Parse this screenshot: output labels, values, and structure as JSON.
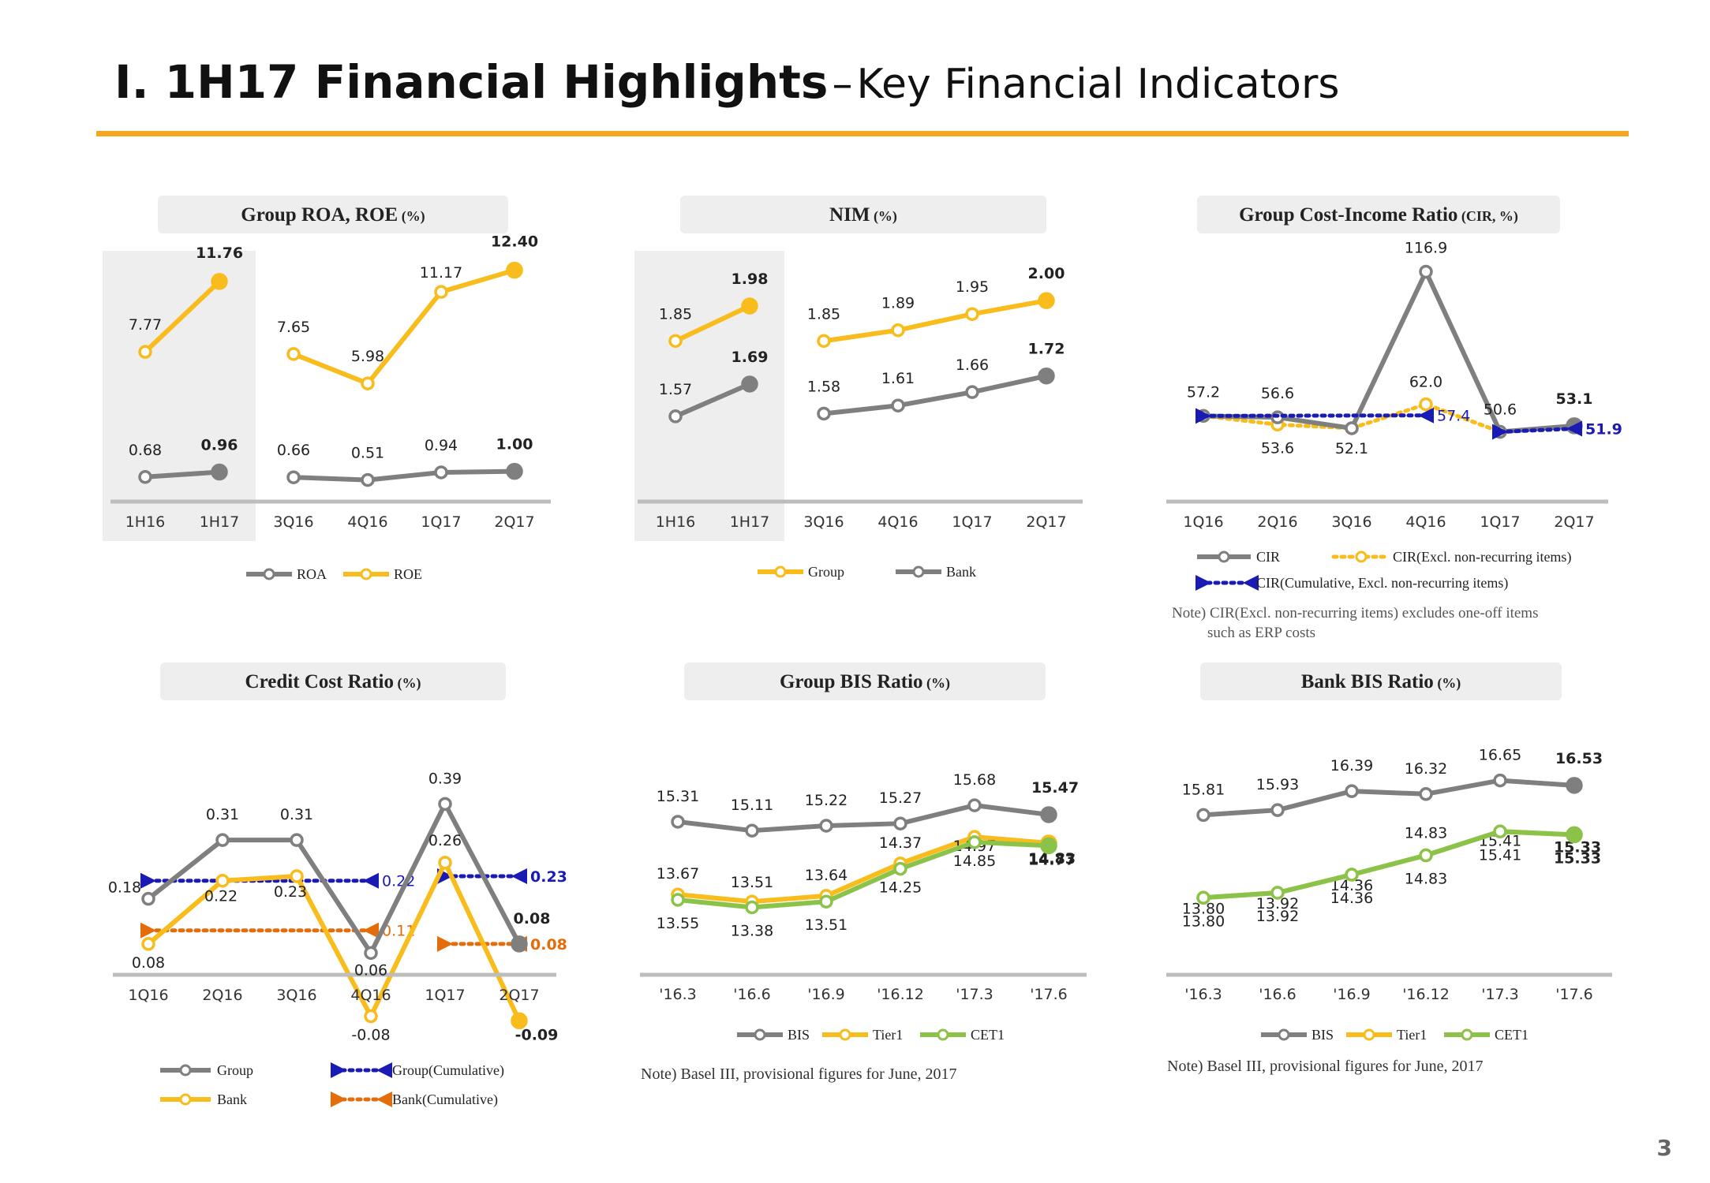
{
  "header": {
    "title_bold": "I. 1H17 Financial Highlights",
    "title_sep": "–",
    "title_sub": "Key Financial Indicators",
    "page_number": "3"
  },
  "colors": {
    "gray": "#7F7F7F",
    "yellow": "#F8BC1C",
    "green": "#8BC34A",
    "blue": "#1A1AB5",
    "orange": "#E46C0A",
    "accent_rule": "#F5A623",
    "panel_bg": "#EEEEEE"
  },
  "chart_data": [
    {
      "id": "roa_roe",
      "type": "line",
      "title_main": "Group ROA, ROE",
      "title_unit": " (%)",
      "ylim": [
        0,
        13.5
      ],
      "grid": false,
      "categories": [
        "1H16",
        "1H17",
        "3Q16",
        "4Q16",
        "1Q17",
        "2Q17"
      ],
      "shaded_categories": [
        "1H16",
        "1H17"
      ],
      "series": [
        {
          "name": "ROA",
          "color": "#7F7F7F",
          "segments": [
            {
              "x": [
                "1H16",
                "1H17"
              ],
              "values": [
                0.68,
                0.96
              ]
            },
            {
              "x": [
                "3Q16",
                "4Q16",
                "1Q17",
                "2Q17"
              ],
              "values": [
                0.66,
                0.51,
                0.94,
                1.0
              ]
            }
          ],
          "labels": [
            "0.68",
            "0.96",
            "0.66",
            "0.51",
            "0.94",
            "1.00"
          ]
        },
        {
          "name": "ROE",
          "color": "#F8BC1C",
          "segments": [
            {
              "x": [
                "1H16",
                "1H17"
              ],
              "values": [
                7.77,
                11.76
              ]
            },
            {
              "x": [
                "3Q16",
                "4Q16",
                "1Q17",
                "2Q17"
              ],
              "values": [
                7.65,
                5.98,
                11.17,
                12.4
              ]
            }
          ],
          "labels": [
            "7.77",
            "11.76",
            "7.65",
            "5.98",
            "11.17",
            "12.40"
          ]
        }
      ],
      "legend": {
        "position": "bottom",
        "entries": [
          "ROA",
          "ROE"
        ]
      }
    },
    {
      "id": "nim",
      "type": "line",
      "title_main": "NIM",
      "title_unit": "  (%)",
      "ylim": [
        1.3,
        2.15
      ],
      "grid": false,
      "categories": [
        "1H16",
        "1H17",
        "3Q16",
        "4Q16",
        "1Q17",
        "2Q17"
      ],
      "shaded_categories": [
        "1H16",
        "1H17"
      ],
      "series": [
        {
          "name": "Group",
          "color": "#F8BC1C",
          "segments": [
            {
              "x": [
                "1H16",
                "1H17"
              ],
              "values": [
                1.85,
                1.98
              ]
            },
            {
              "x": [
                "3Q16",
                "4Q16",
                "1Q17",
                "2Q17"
              ],
              "values": [
                1.85,
                1.89,
                1.95,
                2.0
              ]
            }
          ],
          "labels": [
            "1.85",
            "1.98",
            "1.85",
            "1.89",
            "1.95",
            "2.00"
          ]
        },
        {
          "name": "Bank",
          "color": "#7F7F7F",
          "segments": [
            {
              "x": [
                "1H16",
                "1H17"
              ],
              "values": [
                1.57,
                1.69
              ]
            },
            {
              "x": [
                "3Q16",
                "4Q16",
                "1Q17",
                "2Q17"
              ],
              "values": [
                1.58,
                1.61,
                1.66,
                1.72
              ]
            }
          ],
          "labels": [
            "1.57",
            "1.69",
            "1.58",
            "1.61",
            "1.66",
            "1.72"
          ]
        }
      ],
      "legend": {
        "position": "bottom",
        "entries": [
          "Group",
          "Bank"
        ]
      }
    },
    {
      "id": "cir",
      "type": "line",
      "title_main": "Group Cost-Income Ratio",
      "title_unit": " (CIR, %)",
      "ylim": [
        40,
        120
      ],
      "grid": false,
      "categories": [
        "1Q16",
        "2Q16",
        "3Q16",
        "4Q16",
        "1Q17",
        "2Q17"
      ],
      "series": [
        {
          "name": "CIR",
          "color": "#7F7F7F",
          "values": [
            57.2,
            56.6,
            52.1,
            116.9,
            50.6,
            53.1
          ],
          "labels": [
            "57.2",
            "56.6",
            "52.1",
            "116.9",
            "50.6",
            "53.1"
          ]
        },
        {
          "name": "CIR(Excl. non-recurring items)",
          "color": "#F8BC1C",
          "values": [
            57.2,
            53.6,
            52.1,
            62.0,
            50.6,
            53.1
          ],
          "labels": [
            "",
            "53.6",
            "",
            "62.0",
            "",
            ""
          ]
        },
        {
          "name": "CIR(Cumulative, Excl. non-recurring items)",
          "color": "#1A1AB5",
          "segments": [
            {
              "x": [
                "1Q16",
                "4Q16"
              ],
              "values": [
                57.2,
                57.4
              ]
            },
            {
              "x": [
                "1Q17",
                "2Q17"
              ],
              "values": [
                50.6,
                51.9
              ]
            }
          ],
          "labels": [
            "57.4",
            "51.9"
          ]
        }
      ],
      "legend": {
        "position": "bottom"
      },
      "note_line1": "Note) CIR(Excl. non-recurring items) excludes one-off items",
      "note_line2": "such as ERP costs"
    },
    {
      "id": "ccr",
      "type": "line",
      "title_main": "Credit Cost Ratio",
      "title_unit": " (%)",
      "ylim": [
        -0.1,
        0.45
      ],
      "grid": false,
      "categories": [
        "1Q16",
        "2Q16",
        "3Q16",
        "4Q16",
        "1Q17",
        "2Q17"
      ],
      "series": [
        {
          "name": "Group",
          "color": "#7F7F7F",
          "values": [
            0.18,
            0.31,
            0.31,
            0.06,
            0.39,
            0.08
          ],
          "labels": [
            "0.18",
            "0.31",
            "0.31",
            "0.06",
            "0.39",
            "0.08"
          ]
        },
        {
          "name": "Bank",
          "color": "#F8BC1C",
          "values": [
            0.08,
            0.22,
            0.23,
            -0.08,
            0.26,
            -0.09
          ],
          "labels": [
            "0.08",
            "0.22",
            "0.23",
            "-0.08",
            "0.26",
            "-0.09"
          ]
        },
        {
          "name": "Group(Cumulative)",
          "color": "#1A1AB5",
          "segments": [
            {
              "x": [
                "1Q16",
                "4Q16"
              ],
              "values": [
                0.22,
                0.22
              ]
            },
            {
              "x": [
                "1Q17",
                "2Q17"
              ],
              "values": [
                0.23,
                0.23
              ]
            }
          ],
          "labels": [
            "0.22",
            "0.23"
          ]
        },
        {
          "name": "Bank(Cumulative)",
          "color": "#E46C0A",
          "segments": [
            {
              "x": [
                "1Q16",
                "4Q16"
              ],
              "values": [
                0.11,
                0.11
              ]
            },
            {
              "x": [
                "1Q17",
                "2Q17"
              ],
              "values": [
                0.08,
                0.08
              ]
            }
          ],
          "labels": [
            "0.11",
            "0.08"
          ]
        }
      ],
      "legend": {
        "position": "bottom",
        "entries": [
          "Group",
          "Group(Cumulative)",
          "Bank",
          "Bank(Cumulative)"
        ]
      }
    },
    {
      "id": "group_bis",
      "type": "line",
      "title_main": "Group BIS Ratio",
      "title_unit": " (%)",
      "ylim": [
        12.5,
        16.5
      ],
      "grid": false,
      "categories": [
        "'16.3",
        "'16.6",
        "'16.9",
        "'16.12",
        "'17.3",
        "'17.6"
      ],
      "series": [
        {
          "name": "BIS",
          "color": "#7F7F7F",
          "values": [
            15.31,
            15.11,
            15.22,
            15.27,
            15.68,
            15.47
          ],
          "labels": [
            "15.31",
            "15.11",
            "15.22",
            "15.27",
            "15.68",
            "15.47"
          ]
        },
        {
          "name": "Tier1",
          "color": "#F8BC1C",
          "values": [
            13.67,
            13.51,
            13.64,
            14.37,
            14.97,
            14.83
          ],
          "labels": [
            "13.67",
            "13.51",
            "13.64",
            "14.37",
            "14.97",
            "14.83"
          ]
        },
        {
          "name": "CET1",
          "color": "#8BC34A",
          "values": [
            13.55,
            13.38,
            13.51,
            14.25,
            14.85,
            14.77
          ],
          "labels": [
            "13.55",
            "13.38",
            "13.51",
            "14.25",
            "14.85",
            "14.77"
          ]
        }
      ],
      "legend": {
        "position": "bottom",
        "entries": [
          "BIS",
          "Tier1",
          "CET1"
        ]
      },
      "note": "Note) Basel III, provisional figures for June, 2017"
    },
    {
      "id": "bank_bis",
      "type": "line",
      "title_main": "Bank BIS Ratio",
      "title_unit": " (%)",
      "ylim": [
        13.0,
        17.6
      ],
      "grid": false,
      "categories": [
        "'16.3",
        "'16.6",
        "'16.9",
        "'16.12",
        "'17.3",
        "'17.6"
      ],
      "series": [
        {
          "name": "BIS",
          "color": "#7F7F7F",
          "values": [
            15.81,
            15.93,
            16.39,
            16.32,
            16.65,
            16.53
          ],
          "labels": [
            "15.81",
            "15.93",
            "16.39",
            "16.32",
            "16.65",
            "16.53"
          ]
        },
        {
          "name": "Tier1",
          "color": "#F8BC1C",
          "values": [
            13.8,
            13.92,
            14.36,
            14.83,
            15.41,
            15.33
          ],
          "labels": [
            "13.80",
            "13.92",
            "14.36",
            "14.83",
            "15.41",
            "15.33"
          ]
        },
        {
          "name": "CET1",
          "color": "#8BC34A",
          "values": [
            13.8,
            13.92,
            14.36,
            14.83,
            15.41,
            15.33
          ],
          "labels": [
            "13.80",
            "13.92",
            "14.36",
            "14.83",
            "15.41",
            "15.33"
          ]
        }
      ],
      "legend": {
        "position": "bottom",
        "entries": [
          "BIS",
          "Tier1",
          "CET1"
        ]
      },
      "note": "Note) Basel III, provisional figures for June, 2017"
    }
  ]
}
